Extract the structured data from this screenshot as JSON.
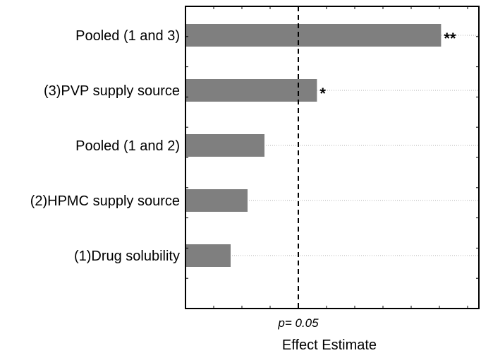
{
  "chart_data": {
    "type": "bar",
    "orientation": "horizontal",
    "categories": [
      "Pooled (1 and 3)",
      "(3)PVP supply source",
      "Pooled (1 and 2)",
      "(2)HPMC supply source",
      "(1)Drug solubility"
    ],
    "values": [
      4.53,
      2.33,
      1.4,
      1.1,
      0.8
    ],
    "significance": [
      "**",
      "*",
      "",
      "",
      ""
    ],
    "xlim": [
      0,
      5.2
    ],
    "reference_line": {
      "value": 2.0,
      "label": "p= 0.05",
      "style": "dashed"
    },
    "xlabel": "Effect Estimate",
    "ylabel": "",
    "grid": "horizontal dotted",
    "bar_color": "#7f7f7f"
  }
}
